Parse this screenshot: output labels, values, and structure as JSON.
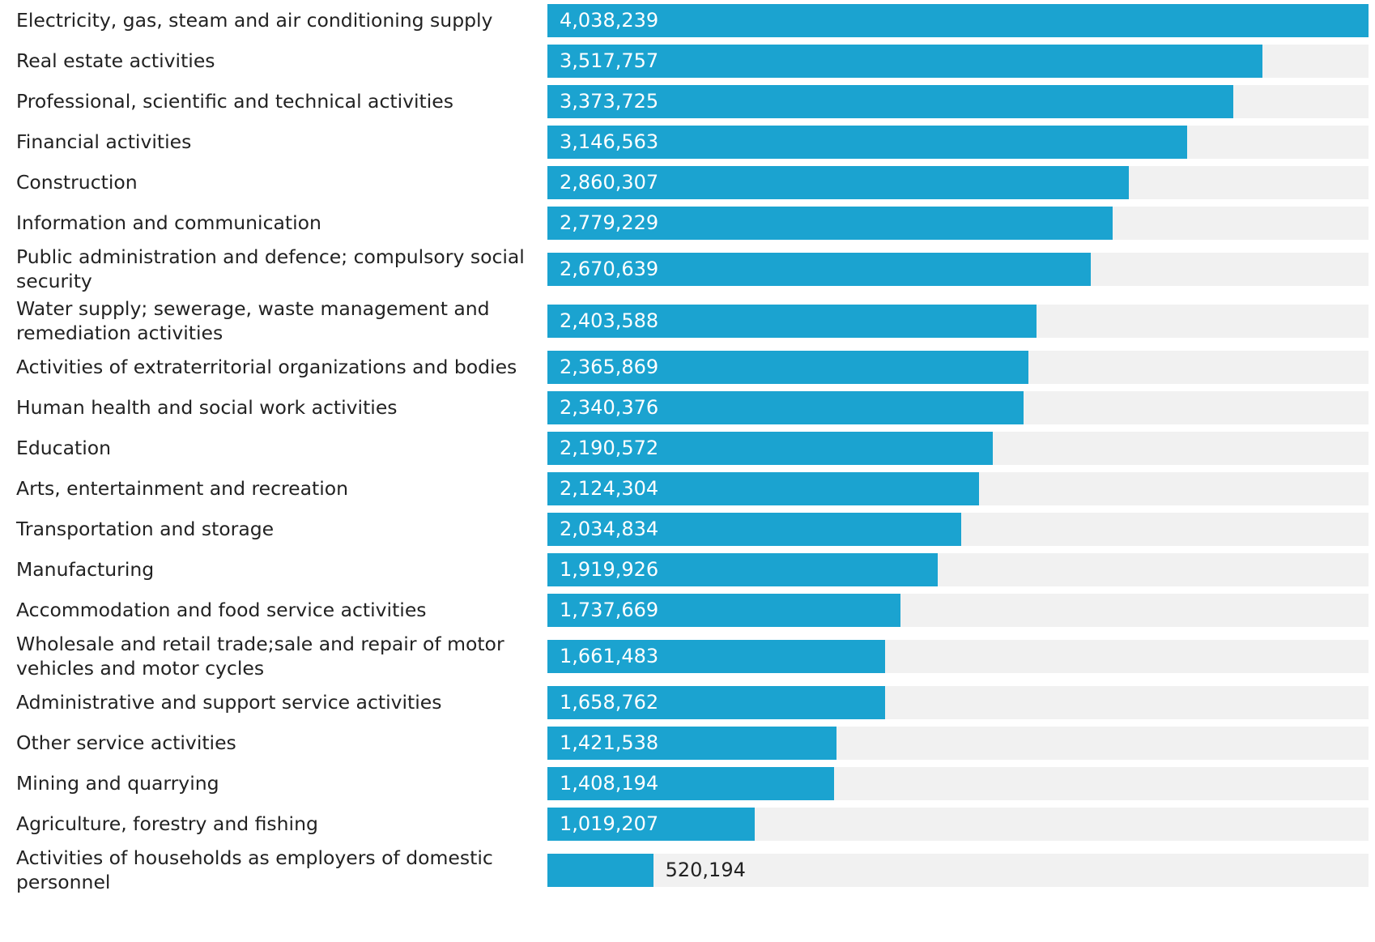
{
  "chart_data": {
    "type": "bar",
    "orientation": "horizontal",
    "color": "#1ba3d0",
    "categories": [
      "Electricity, gas, steam and air conditioning supply",
      "Real estate activities",
      "Professional, scientific and technical activities",
      "Financial activities",
      "Construction",
      "Information and communication",
      "Public administration and defence; compulsory social security",
      "Water supply; sewerage, waste management and remediation activities",
      "Activities of extraterritorial organizations and bodies",
      "Human health and social work activities",
      "Education",
      "Arts, entertainment and recreation",
      "Transportation and storage",
      "Manufacturing",
      "Accommodation and food service activities",
      "Wholesale and retail trade;sale and repair of motor vehicles and motor cycles",
      "Administrative and support service activities",
      "Other service activities",
      "Mining and quarrying",
      "Agriculture, forestry and fishing",
      "Activities of households as employers of domestic personnel"
    ],
    "values": [
      4038239,
      3517757,
      3373725,
      3146563,
      2860307,
      2779229,
      2670639,
      2403588,
      2365869,
      2340376,
      2190572,
      2124304,
      2034834,
      1919926,
      1737669,
      1661483,
      1658762,
      1421538,
      1408194,
      1019207,
      520194
    ],
    "value_labels": [
      "4,038,239",
      "3,517,757",
      "3,373,725",
      "3,146,563",
      "2,860,307",
      "2,779,229",
      "2,670,639",
      "2,403,588",
      "2,365,869",
      "2,340,376",
      "2,190,572",
      "2,124,304",
      "2,034,834",
      "1,919,926",
      "1,737,669",
      "1,661,483",
      "1,658,762",
      "1,421,538",
      "1,408,194",
      "1,019,207",
      "520,194"
    ],
    "xlim": [
      0,
      4038239
    ]
  }
}
